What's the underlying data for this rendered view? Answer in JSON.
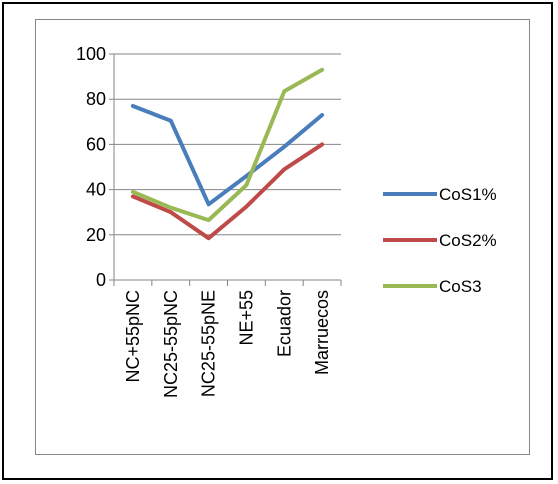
{
  "chart_data": {
    "type": "line",
    "categories": [
      "NC+55pNC",
      "NC25-55pNC",
      "NC25-55pNE",
      "NE+55",
      "Ecuador",
      "Marruecos"
    ],
    "series": [
      {
        "name": "CoS1%",
        "color": "#4a7ebb",
        "values": [
          77,
          70.5,
          33.5,
          46,
          59,
          73
        ]
      },
      {
        "name": "CoS2%",
        "color": "#be4b48",
        "values": [
          37,
          30,
          18.5,
          32.5,
          49,
          60
        ]
      },
      {
        "name": "CoS3",
        "color": "#98b954",
        "values": [
          39,
          32,
          26.5,
          42,
          83.5,
          93
        ]
      }
    ],
    "ylim": [
      0,
      100
    ],
    "yticks": [
      0,
      20,
      40,
      60,
      80,
      100
    ],
    "grid": true,
    "legend": "right"
  }
}
